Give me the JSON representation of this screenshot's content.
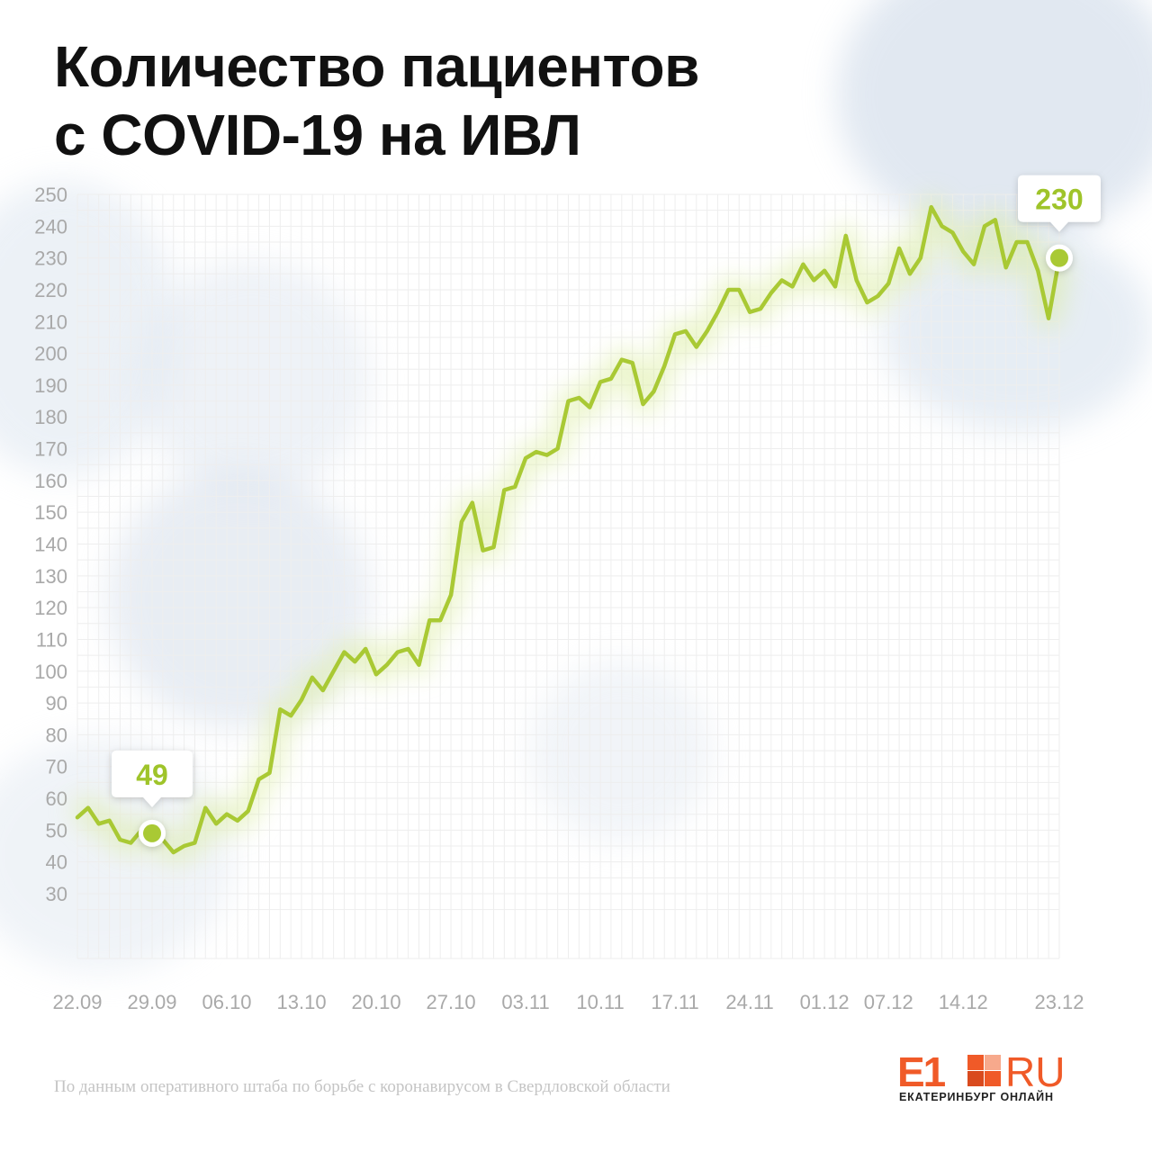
{
  "header": {
    "title_line1": "Количество пациентов",
    "title_line2": "с COVID-19 на ИВЛ"
  },
  "footer": {
    "source": "По данным оперативного штаба по борьбе с коронавирусом в Свердловской области"
  },
  "logo": {
    "brand_main": "E1",
    "brand_suffix": "RU",
    "tagline": "ЕКАТЕРИНБУРГ ОНЛАЙН"
  },
  "colors": {
    "line": "#a9c934",
    "marker": "#a9c934",
    "callout_text": "#9fc42a",
    "grid": "#eeeeee",
    "ticks": "#a9a9a9",
    "brand": "#f05a28"
  },
  "chart_data": {
    "type": "line",
    "title": "Количество пациентов с COVID-19 на ИВЛ",
    "ylim": [
      25,
      250
    ],
    "yticks": [
      250,
      240,
      230,
      220,
      210,
      200,
      190,
      180,
      170,
      160,
      150,
      140,
      130,
      120,
      110,
      100,
      90,
      80,
      70,
      60,
      50,
      40,
      30
    ],
    "xtick_labels": [
      "22.09",
      "29.09",
      "06.10",
      "13.10",
      "20.10",
      "27.10",
      "03.11",
      "10.11",
      "17.11",
      "24.11",
      "01.12",
      "07.12",
      "14.12",
      "23.12"
    ],
    "xtick_index": [
      0,
      7,
      14,
      21,
      28,
      35,
      42,
      49,
      56,
      63,
      70,
      76,
      83,
      92
    ],
    "grid": true,
    "series": [
      {
        "values": [
          54,
          57,
          52,
          53,
          47,
          46,
          50,
          49,
          47,
          43,
          45,
          46,
          57,
          52,
          55,
          53,
          56,
          66,
          68,
          88,
          86,
          91,
          98,
          94,
          100,
          106,
          103,
          107,
          99,
          102,
          106,
          107,
          102,
          116,
          116,
          124,
          147,
          153,
          138,
          139,
          157,
          158,
          167,
          169,
          168,
          170,
          185,
          186,
          183,
          191,
          192,
          198,
          197,
          184,
          188,
          196,
          206,
          207,
          202,
          207,
          213,
          220,
          220,
          213,
          214,
          219,
          223,
          221,
          228,
          223,
          226,
          221,
          237,
          223,
          216,
          218,
          222,
          233,
          225,
          230,
          246,
          240,
          238,
          232,
          228,
          240,
          242,
          227,
          235,
          235,
          226,
          211,
          230
        ]
      }
    ],
    "annotations": [
      {
        "index": 7,
        "value": 49,
        "label": "49"
      },
      {
        "index": 92,
        "value": 230,
        "label": "230"
      }
    ]
  }
}
